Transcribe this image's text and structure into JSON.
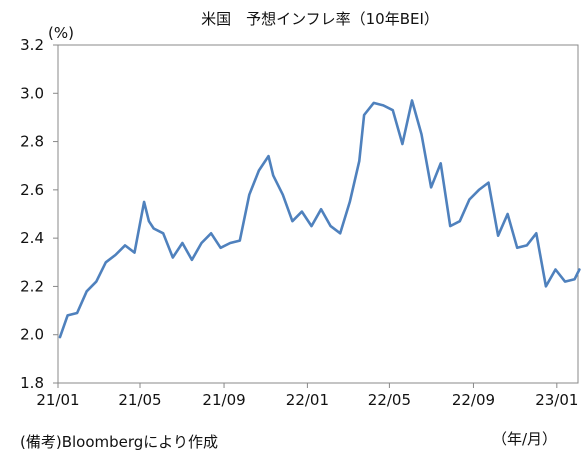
{
  "chart_data": {
    "type": "line",
    "title": "米国　予想インフレ率（10年BEI）",
    "ylabel": "(%)",
    "xlabel": "（年/月）",
    "ylim": [
      1.8,
      3.2
    ],
    "yticks": [
      "1.8",
      "2.0",
      "2.2",
      "2.4",
      "2.6",
      "2.8",
      "3.0",
      "3.2"
    ],
    "xlim": [
      "2021-01",
      "2023-02"
    ],
    "xticks": [
      {
        "label": "21/01",
        "date": "2021-01"
      },
      {
        "label": "21/05",
        "date": "2021-05"
      },
      {
        "label": "21/09",
        "date": "2021-09"
      },
      {
        "label": "22/01",
        "date": "2022-01"
      },
      {
        "label": "22/05",
        "date": "2022-05"
      },
      {
        "label": "22/09",
        "date": "2022-09"
      },
      {
        "label": "23/01",
        "date": "2023-01"
      }
    ],
    "grid": false,
    "source_note": "(備考)Bloombergにより作成",
    "series": [
      {
        "color": "#4F81BD",
        "x": [
          "2021-01-04",
          "2021-01-15",
          "2021-01-29",
          "2021-02-12",
          "2021-02-26",
          "2021-03-12",
          "2021-03-26",
          "2021-04-09",
          "2021-04-23",
          "2021-05-07",
          "2021-05-14",
          "2021-05-21",
          "2021-06-04",
          "2021-06-18",
          "2021-07-02",
          "2021-07-16",
          "2021-07-30",
          "2021-08-13",
          "2021-08-27",
          "2021-09-10",
          "2021-09-24",
          "2021-10-08",
          "2021-10-22",
          "2021-11-05",
          "2021-11-12",
          "2021-11-26",
          "2021-12-10",
          "2021-12-24",
          "2022-01-07",
          "2022-01-21",
          "2022-02-04",
          "2022-02-18",
          "2022-03-04",
          "2022-03-18",
          "2022-03-25",
          "2022-04-08",
          "2022-04-22",
          "2022-05-06",
          "2022-05-20",
          "2022-06-03",
          "2022-06-17",
          "2022-07-01",
          "2022-07-15",
          "2022-07-29",
          "2022-08-12",
          "2022-08-26",
          "2022-09-09",
          "2022-09-23",
          "2022-10-07",
          "2022-10-21",
          "2022-11-04",
          "2022-11-18",
          "2022-12-02",
          "2022-12-16",
          "2022-12-30",
          "2023-01-13",
          "2023-01-27",
          "2023-02-03"
        ],
        "values": [
          1.99,
          2.08,
          2.09,
          2.18,
          2.22,
          2.3,
          2.33,
          2.37,
          2.34,
          2.55,
          2.47,
          2.44,
          2.42,
          2.32,
          2.38,
          2.31,
          2.38,
          2.42,
          2.36,
          2.38,
          2.39,
          2.58,
          2.68,
          2.74,
          2.66,
          2.58,
          2.47,
          2.51,
          2.45,
          2.52,
          2.45,
          2.42,
          2.55,
          2.72,
          2.91,
          2.96,
          2.95,
          2.93,
          2.79,
          2.97,
          2.83,
          2.61,
          2.71,
          2.45,
          2.47,
          2.56,
          2.6,
          2.63,
          2.41,
          2.5,
          2.36,
          2.37,
          2.42,
          2.2,
          2.27,
          2.22,
          2.23,
          2.27
        ]
      }
    ]
  }
}
